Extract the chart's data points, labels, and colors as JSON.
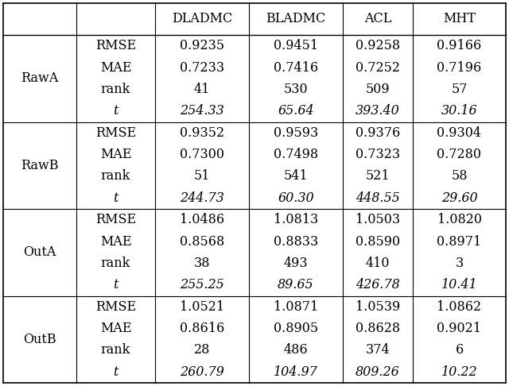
{
  "row_groups": [
    {
      "label": "RawA",
      "rows": [
        [
          "RMSE",
          "0.9235",
          "0.9451",
          "0.9258",
          "0.9166"
        ],
        [
          "MAE",
          "0.7233",
          "0.7416",
          "0.7252",
          "0.7196"
        ],
        [
          "rank",
          "41",
          "530",
          "509",
          "57"
        ],
        [
          "t",
          "254.33",
          "65.64",
          "393.40",
          "30.16"
        ]
      ]
    },
    {
      "label": "RawB",
      "rows": [
        [
          "RMSE",
          "0.9352",
          "0.9593",
          "0.9376",
          "0.9304"
        ],
        [
          "MAE",
          "0.7300",
          "0.7498",
          "0.7323",
          "0.7280"
        ],
        [
          "rank",
          "51",
          "541",
          "521",
          "58"
        ],
        [
          "t",
          "244.73",
          "60.30",
          "448.55",
          "29.60"
        ]
      ]
    },
    {
      "label": "OutA",
      "rows": [
        [
          "RMSE",
          "1.0486",
          "1.0813",
          "1.0503",
          "1.0820"
        ],
        [
          "MAE",
          "0.8568",
          "0.8833",
          "0.8590",
          "0.8971"
        ],
        [
          "rank",
          "38",
          "493",
          "410",
          "3"
        ],
        [
          "t",
          "255.25",
          "89.65",
          "426.78",
          "10.41"
        ]
      ]
    },
    {
      "label": "OutB",
      "rows": [
        [
          "RMSE",
          "1.0521",
          "1.0871",
          "1.0539",
          "1.0862"
        ],
        [
          "MAE",
          "0.8616",
          "0.8905",
          "0.8628",
          "0.9021"
        ],
        [
          "rank",
          "28",
          "486",
          "374",
          "6"
        ],
        [
          "t",
          "260.79",
          "104.97",
          "809.26",
          "10.22"
        ]
      ]
    }
  ],
  "col_headers": [
    "DLADMC",
    "BLADMC",
    "ACL",
    "MHT"
  ],
  "background_color": "#ffffff",
  "line_color": "#000000",
  "font_size": 11.5
}
